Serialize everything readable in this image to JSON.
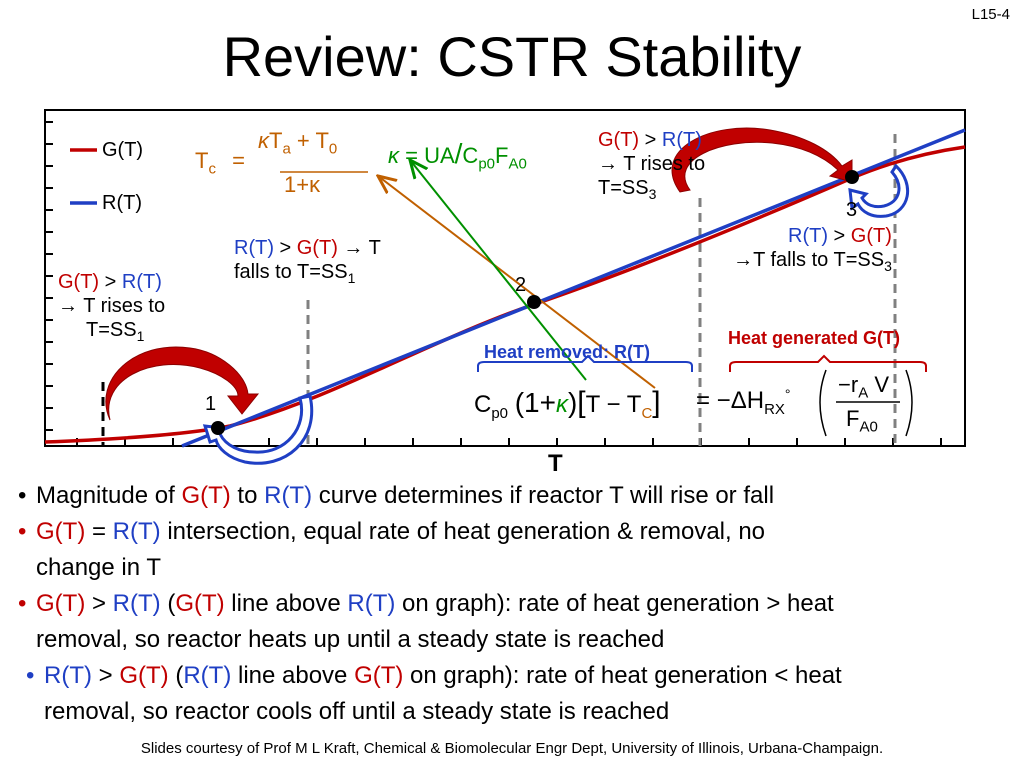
{
  "slide_number": "L15-4",
  "title": "Review: CSTR Stability",
  "legend": [
    {
      "label": "G(T)",
      "color": "#c00000"
    },
    {
      "label": "R(T)",
      "color": "#1f3fc4"
    }
  ],
  "axis": {
    "x_label": "T"
  },
  "colors": {
    "gt": "#c00000",
    "rt": "#1f3fc4",
    "tc": "#c06000",
    "kappa": "#009000",
    "dashed": "#808080"
  },
  "points": [
    {
      "label": "1",
      "description": "SS1"
    },
    {
      "label": "2",
      "description": "SS2"
    },
    {
      "label": "3",
      "description": "SS3"
    }
  ],
  "formulas": {
    "tc": {
      "lhs": "T",
      "lhs_sub": "c",
      "eq": "=",
      "num_k": "κ",
      "num_ta": "T",
      "num_ta_sub": "a",
      "num_plus": " + T",
      "num_t0_sub": "0",
      "den": "1+κ"
    },
    "kappa": {
      "k": "κ",
      "eq": " = UA",
      "slash": "/",
      "c": "C",
      "c_sub": "p0",
      "f": "F",
      "f_sub": "A0"
    },
    "heat_balance": {
      "c": "C",
      "c_sub": "p0",
      "open": "(1+",
      "k": "κ",
      "close": ")",
      "bracket_open": "[",
      "t": "T − T",
      "t_sub": "C",
      "bracket_close": "]",
      "eq": " = −ΔH",
      "h_sub": "RX",
      "deg": "°",
      "num": "−r",
      "num_sub": "A",
      "num_v": " V",
      "den": "F",
      "den_sub": "A0"
    }
  },
  "annotations": {
    "gt_rises_ss1": {
      "g": "G(T)",
      "op": " > ",
      "r": "R(T)",
      "line2": "→ T rises to",
      "line3": "T=SS",
      "line3_sub": "1"
    },
    "rt_falls_ss1": {
      "r": "R(T)",
      "op": " > ",
      "g": "G(T)",
      "tail": " → T",
      "line2": "falls to T=SS",
      "line2_sub": "1"
    },
    "gt_rises_ss3": {
      "g": "G(T)",
      "op": " > ",
      "r": "R(T)",
      "line2": "→ T rises to",
      "line3": "T=SS",
      "line3_sub": "3"
    },
    "rt_falls_ss3": {
      "r": "R(T)",
      "op": " > ",
      "g": "G(T)",
      "line2": "→T falls to T=SS",
      "line2_sub": "3"
    },
    "heat_removed": "Heat removed: R(T)",
    "heat_generated": "Heat generated G(T)"
  },
  "bullets": [
    {
      "parts": [
        {
          "t": "Magnitude of ",
          "c": "k"
        },
        {
          "t": "G(T)",
          "c": "r"
        },
        {
          "t": " to ",
          "c": "k"
        },
        {
          "t": "R(T)",
          "c": "b"
        },
        {
          "t": " curve determines if reactor T will rise or fall",
          "c": "k"
        }
      ]
    },
    {
      "parts": [
        {
          "t": "G(T)",
          "c": "r"
        },
        {
          "t": " = ",
          "c": "k"
        },
        {
          "t": "R(T)",
          "c": "b"
        },
        {
          "t": " intersection, equal rate of heat generation & removal, no",
          "c": "k"
        }
      ],
      "continuation": "change in T"
    },
    {
      "parts": [
        {
          "t": "G(T)",
          "c": "r"
        },
        {
          "t": " > ",
          "c": "k"
        },
        {
          "t": "R(T)",
          "c": "b"
        },
        {
          "t": " (",
          "c": "k"
        },
        {
          "t": "G(T)",
          "c": "r"
        },
        {
          "t": " line above ",
          "c": "k"
        },
        {
          "t": "R(T)",
          "c": "b"
        },
        {
          "t": " on graph): rate of heat generation > heat",
          "c": "k"
        }
      ],
      "continuation": "removal, so reactor heats up until a steady state is reached"
    },
    {
      "parts": [
        {
          "t": "R(T)",
          "c": "b"
        },
        {
          "t": " > ",
          "c": "k"
        },
        {
          "t": "G(T)",
          "c": "r"
        },
        {
          "t": " (",
          "c": "k"
        },
        {
          "t": "R(T)",
          "c": "b"
        },
        {
          "t": " line above ",
          "c": "k"
        },
        {
          "t": "G(T)",
          "c": "r"
        },
        {
          "t": " on graph): rate of heat generation < heat",
          "c": "k"
        }
      ],
      "continuation": "removal, so reactor cools off until a steady state is reached"
    }
  ],
  "footer": "Slides courtesy of Prof M L Kraft, Chemical & Biomolecular Engr Dept, University of Illinois, Urbana-Champaign."
}
